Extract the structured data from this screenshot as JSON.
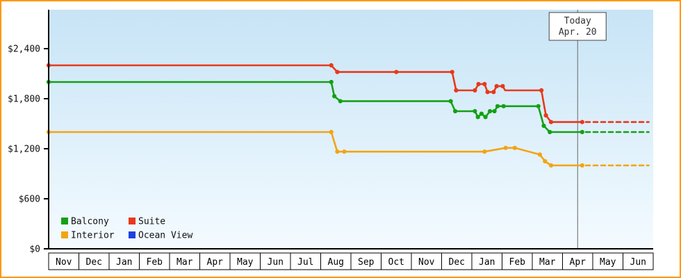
{
  "frame": {
    "border_color": "#ff9900"
  },
  "today_marker": {
    "line1": "Today",
    "line2": "Apr. 20",
    "month_index": 17.5
  },
  "legend": {
    "rows": [
      [
        {
          "label": "Balcony",
          "color": "#14a014"
        },
        {
          "label": "Suite",
          "color": "#e8391a"
        }
      ],
      [
        {
          "label": "Interior",
          "color": "#f3a412"
        },
        {
          "label": "Ocean View",
          "color": "#1d41e0"
        }
      ]
    ]
  },
  "chart_data": {
    "type": "line",
    "subtype": "step price history with dashed forecast after today marker",
    "title": "",
    "xlabel": "",
    "ylabel": "",
    "x_axis": {
      "labels": [
        "Nov",
        "Dec",
        "Jan",
        "Feb",
        "Mar",
        "Apr",
        "May",
        "Jun",
        "Jul",
        "Aug",
        "Sep",
        "Oct",
        "Nov",
        "Dec",
        "Jan",
        "Feb",
        "Mar",
        "Apr",
        "May",
        "Jun"
      ]
    },
    "y_axis": {
      "range": [
        0,
        2870
      ],
      "ticks": [
        {
          "value": 0,
          "label": "$0"
        },
        {
          "value": 600,
          "label": "$600"
        },
        {
          "value": 1200,
          "label": "$1,200"
        },
        {
          "value": 1800,
          "label": "$1,800"
        },
        {
          "value": 2400,
          "label": "$2,400"
        }
      ]
    },
    "plot_background": {
      "top": "#c7e4f6",
      "bottom": "#f4fbff"
    },
    "today_line_color": "#666666",
    "forecast_end_month_index": 19.85,
    "series": [
      {
        "name": "Suite",
        "color": "#e8391a",
        "forecast_value": 1520,
        "points": [
          [
            0,
            2200,
            1
          ],
          [
            9.35,
            2200,
            1
          ],
          [
            9.55,
            2120,
            1
          ],
          [
            11.5,
            2120,
            1
          ],
          [
            13.35,
            2120,
            1
          ],
          [
            13.48,
            1900,
            1
          ],
          [
            14.1,
            1900,
            1
          ],
          [
            14.22,
            1975,
            1
          ],
          [
            14.42,
            1975,
            1
          ],
          [
            14.52,
            1880,
            1
          ],
          [
            14.72,
            1880,
            1
          ],
          [
            14.82,
            1950,
            1
          ],
          [
            15.02,
            1950,
            1
          ],
          [
            15.1,
            1900,
            0
          ],
          [
            16.3,
            1900,
            1
          ],
          [
            16.45,
            1600,
            1
          ],
          [
            16.62,
            1520,
            1
          ],
          [
            17.65,
            1520,
            1
          ]
        ]
      },
      {
        "name": "Balcony",
        "color": "#14a014",
        "forecast_value": 1400,
        "points": [
          [
            0,
            2000,
            1
          ],
          [
            9.35,
            2000,
            1
          ],
          [
            9.45,
            1830,
            1
          ],
          [
            9.65,
            1770,
            1
          ],
          [
            13.3,
            1770,
            1
          ],
          [
            13.45,
            1650,
            1
          ],
          [
            14.1,
            1650,
            1
          ],
          [
            14.2,
            1580,
            1
          ],
          [
            14.32,
            1620,
            1
          ],
          [
            14.45,
            1580,
            1
          ],
          [
            14.6,
            1650,
            1
          ],
          [
            14.75,
            1650,
            1
          ],
          [
            14.85,
            1710,
            1
          ],
          [
            15.05,
            1710,
            1
          ],
          [
            16.2,
            1710,
            1
          ],
          [
            16.38,
            1475,
            1
          ],
          [
            16.58,
            1400,
            1
          ],
          [
            17.65,
            1400,
            1
          ]
        ]
      },
      {
        "name": "Interior",
        "color": "#f3a412",
        "forecast_value": 1000,
        "points": [
          [
            0,
            1400,
            1
          ],
          [
            9.35,
            1400,
            1
          ],
          [
            9.55,
            1165,
            1
          ],
          [
            9.78,
            1165,
            1
          ],
          [
            14.42,
            1165,
            1
          ],
          [
            15.12,
            1210,
            1
          ],
          [
            15.42,
            1210,
            1
          ],
          [
            16.25,
            1130,
            1
          ],
          [
            16.42,
            1050,
            1
          ],
          [
            16.62,
            1000,
            1
          ],
          [
            17.65,
            1000,
            1
          ]
        ]
      },
      {
        "name": "Ocean View",
        "color": "#1d41e0",
        "forecast_value": null,
        "points": []
      }
    ]
  }
}
